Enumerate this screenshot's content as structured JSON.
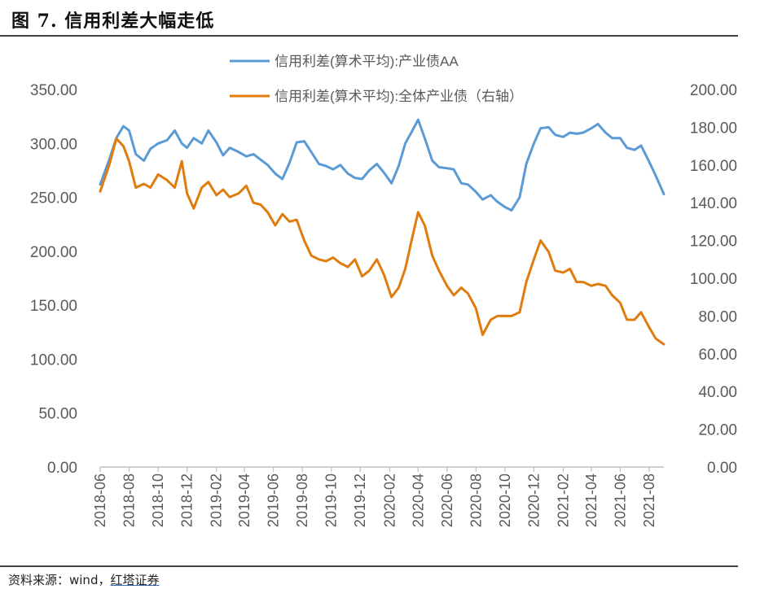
{
  "figure_title": "图 7. 信用利差大幅走低",
  "source": {
    "prefix": "资料来源：wind，",
    "brand": "红塔证券"
  },
  "colors": {
    "aa": "#5b9bd5",
    "all": "#e07b0e",
    "axis": "#bfbfbf",
    "text": "#595959"
  },
  "chart_data": {
    "type": "line",
    "title": "",
    "xlabel": "",
    "ylabel": "",
    "legend": [
      "信用利差(算术平均):产业债AA",
      "信用利差(算术平均):全体产业债（右轴）"
    ],
    "legend_position": "top-center",
    "grid": false,
    "x_tick_labels": [
      "2018-06",
      "2018-08",
      "2018-10",
      "2018-12",
      "2019-02",
      "2019-04",
      "2019-06",
      "2019-08",
      "2019-10",
      "2019-12",
      "2020-02",
      "2020-04",
      "2020-06",
      "2020-08",
      "2020-10",
      "2020-12",
      "2021-02",
      "2021-04",
      "2021-06",
      "2021-08"
    ],
    "y_left": {
      "ticks": [
        "0.00",
        "50.00",
        "100.00",
        "150.00",
        "200.00",
        "250.00",
        "300.00",
        "350.00"
      ],
      "lim": [
        0,
        350
      ]
    },
    "y_right": {
      "ticks": [
        "0.00",
        "20.00",
        "40.00",
        "60.00",
        "80.00",
        "100.00",
        "120.00",
        "140.00",
        "160.00",
        "180.00",
        "200.00"
      ],
      "lim": [
        0,
        200
      ]
    },
    "series": [
      {
        "name": "信用利差(算术平均):产业债AA",
        "axis": "left",
        "x": [
          "2018-06-01",
          "2018-06-20",
          "2018-07-05",
          "2018-07-20",
          "2018-08-01",
          "2018-08-15",
          "2018-09-01",
          "2018-09-15",
          "2018-10-01",
          "2018-10-20",
          "2018-11-05",
          "2018-11-20",
          "2018-12-01",
          "2018-12-15",
          "2019-01-01",
          "2019-01-15",
          "2019-02-01",
          "2019-02-15",
          "2019-03-01",
          "2019-03-20",
          "2019-04-05",
          "2019-04-20",
          "2019-05-05",
          "2019-05-20",
          "2019-06-05",
          "2019-06-20",
          "2019-07-05",
          "2019-07-20",
          "2019-08-05",
          "2019-08-20",
          "2019-09-05",
          "2019-09-20",
          "2019-10-05",
          "2019-10-20",
          "2019-11-05",
          "2019-11-20",
          "2019-12-05",
          "2019-12-20",
          "2020-01-05",
          "2020-01-20",
          "2020-02-05",
          "2020-02-20",
          "2020-03-05",
          "2020-03-20",
          "2020-04-01",
          "2020-04-15",
          "2020-05-01",
          "2020-05-15",
          "2020-06-01",
          "2020-06-15",
          "2020-07-01",
          "2020-07-15",
          "2020-08-01",
          "2020-08-15",
          "2020-09-01",
          "2020-09-15",
          "2020-10-01",
          "2020-10-15",
          "2020-11-01",
          "2020-11-15",
          "2020-12-01",
          "2020-12-15",
          "2021-01-01",
          "2021-01-15",
          "2021-02-01",
          "2021-02-15",
          "2021-03-01",
          "2021-03-15",
          "2021-04-01",
          "2021-04-15",
          "2021-05-01",
          "2021-05-15",
          "2021-06-01",
          "2021-06-15",
          "2021-07-01",
          "2021-07-15",
          "2021-08-01",
          "2021-08-15",
          "2021-09-01"
        ],
        "values": [
          262,
          285,
          305,
          316,
          312,
          290,
          284,
          295,
          300,
          303,
          312,
          300,
          296,
          305,
          300,
          312,
          301,
          289,
          296,
          292,
          288,
          290,
          285,
          280,
          272,
          267,
          282,
          301,
          302,
          292,
          281,
          279,
          276,
          280,
          272,
          268,
          267,
          275,
          281,
          273,
          263,
          279,
          300,
          312,
          322,
          305,
          284,
          278,
          277,
          276,
          263,
          262,
          255,
          248,
          252,
          246,
          241,
          238,
          250,
          281,
          300,
          314,
          315,
          308,
          306,
          310,
          309,
          310,
          314,
          318,
          310,
          305,
          305,
          296,
          294,
          298,
          283,
          270,
          253
        ]
      },
      {
        "name": "信用利差(算术平均):全体产业债（右轴）",
        "axis": "right",
        "x": [
          "2018-06-01",
          "2018-06-20",
          "2018-07-05",
          "2018-07-20",
          "2018-08-01",
          "2018-08-15",
          "2018-09-01",
          "2018-09-15",
          "2018-10-01",
          "2018-10-20",
          "2018-11-05",
          "2018-11-20",
          "2018-12-01",
          "2018-12-15",
          "2019-01-01",
          "2019-01-15",
          "2019-02-01",
          "2019-02-15",
          "2019-03-01",
          "2019-03-20",
          "2019-04-05",
          "2019-04-20",
          "2019-05-05",
          "2019-05-20",
          "2019-06-05",
          "2019-06-20",
          "2019-07-05",
          "2019-07-20",
          "2019-08-05",
          "2019-08-20",
          "2019-09-05",
          "2019-09-20",
          "2019-10-05",
          "2019-10-20",
          "2019-11-05",
          "2019-11-20",
          "2019-12-05",
          "2019-12-20",
          "2020-01-05",
          "2020-01-20",
          "2020-02-05",
          "2020-02-20",
          "2020-03-05",
          "2020-03-20",
          "2020-04-01",
          "2020-04-15",
          "2020-05-01",
          "2020-05-15",
          "2020-06-01",
          "2020-06-15",
          "2020-07-01",
          "2020-07-15",
          "2020-08-01",
          "2020-08-15",
          "2020-09-01",
          "2020-09-15",
          "2020-10-01",
          "2020-10-15",
          "2020-11-01",
          "2020-11-15",
          "2020-12-01",
          "2020-12-15",
          "2021-01-01",
          "2021-01-15",
          "2021-02-01",
          "2021-02-15",
          "2021-03-01",
          "2021-03-15",
          "2021-04-01",
          "2021-04-15",
          "2021-05-01",
          "2021-05-15",
          "2021-06-01",
          "2021-06-15",
          "2021-07-01",
          "2021-07-15",
          "2021-08-01",
          "2021-08-15",
          "2021-09-01"
        ],
        "values": [
          146,
          160,
          174,
          170,
          162,
          148,
          150,
          148,
          155,
          152,
          148,
          162,
          145,
          137,
          148,
          151,
          144,
          147,
          143,
          145,
          149,
          140,
          139,
          135,
          128,
          134,
          130,
          131,
          120,
          112,
          110,
          109,
          111,
          108,
          106,
          110,
          101,
          104,
          110,
          102,
          90,
          95,
          105,
          122,
          135,
          128,
          112,
          104,
          96,
          91,
          95,
          92,
          84,
          70,
          78,
          80,
          80,
          80,
          82,
          98,
          110,
          120,
          114,
          104,
          103,
          105,
          98,
          98,
          96,
          97,
          96,
          91,
          87,
          78,
          78,
          82,
          74,
          68,
          65
        ]
      }
    ]
  }
}
